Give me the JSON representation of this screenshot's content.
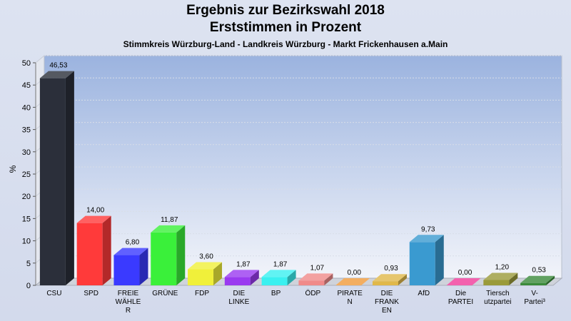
{
  "chart_data": {
    "type": "bar",
    "title": "Ergebnis zur Bezirkswahl 2018",
    "subtitle": "Erststimmen in Prozent",
    "subtitle2": "Stimmkreis Würzburg-Land - Landkreis Würzburg - Markt Frickenhausen a.Main",
    "ylabel": "%",
    "ylim": [
      0,
      50
    ],
    "yticks": [
      "0",
      "5",
      "10",
      "15",
      "20",
      "25",
      "30",
      "35",
      "40",
      "45",
      "50"
    ],
    "categories": [
      [
        "CSU"
      ],
      [
        "SPD"
      ],
      [
        "FREIE",
        "WÄHLE",
        "R"
      ],
      [
        "GRÜNE"
      ],
      [
        "FDP"
      ],
      [
        "DIE",
        "LINKE"
      ],
      [
        "BP"
      ],
      [
        "ÖDP"
      ],
      [
        "PIRATE",
        "N"
      ],
      [
        "DIE",
        "FRANK",
        "EN"
      ],
      [
        "AfD"
      ],
      [
        "Die",
        "PARTEI"
      ],
      [
        "Tiersch",
        "utzpartei"
      ],
      [
        "V-",
        "Partei³"
      ]
    ],
    "values": [
      46.53,
      14.0,
      6.8,
      11.87,
      3.6,
      1.87,
      1.87,
      1.07,
      0.0,
      0.93,
      9.73,
      0.0,
      1.2,
      0.53
    ],
    "value_labels": [
      "46,53",
      "14,00",
      "6,80",
      "11,87",
      "3,60",
      "1,87",
      "1,87",
      "1,07",
      "0,00",
      "0,93",
      "9,73",
      "0,00",
      "1,20",
      "0,53"
    ],
    "colors": [
      "#2b2f3a",
      "#ff3a3a",
      "#3a3aff",
      "#3af03a",
      "#f0f03a",
      "#9a3af0",
      "#3af0f0",
      "#f08a8a",
      "#f09a3a",
      "#e0b84a",
      "#3a9ad0",
      "#f03a9a",
      "#9a9a3a",
      "#3a8a3a"
    ],
    "grid": true
  }
}
